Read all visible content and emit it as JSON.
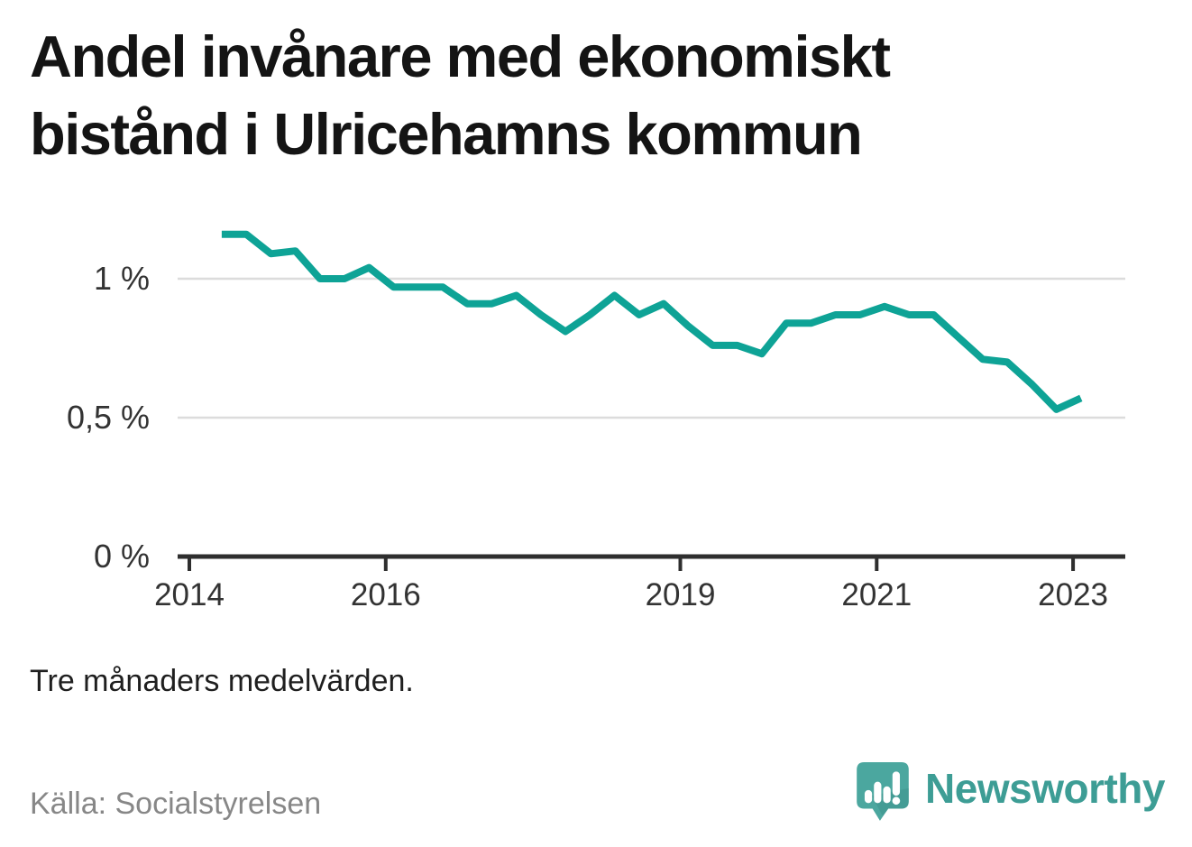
{
  "title": {
    "line1": "Andel invånare med ekonomiskt",
    "line2": "bistånd i Ulricehamns kommun"
  },
  "footnote": "Tre månaders medelvärden.",
  "source": "Källa: Socialstyrelsen",
  "brand": {
    "name": "Newsworthy",
    "icon": "speech-bubble-with-bar-chart-and-exclamation-icon",
    "wordmark_color": "#3d9d95",
    "icon_color": "#4ba79f"
  },
  "colors": {
    "line": "#0ea396",
    "grid": "#dcdcdc",
    "axis": "#2e2e2e",
    "tick_label": "#333333",
    "title": "#141414",
    "footnote": "#1f1f1f",
    "source": "#878787"
  },
  "chart_data": {
    "type": "line",
    "title": "Andel invånare med ekonomiskt bistånd i Ulricehamns kommun",
    "subtitle": "Tre månaders medelvärden.",
    "source": "Källa: Socialstyrelsen",
    "xlabel": "",
    "ylabel": "%",
    "x_unit": "year (quarterly points, three-month averages)",
    "ylim": [
      0,
      1.26
    ],
    "xlim": [
      2013.88,
      2023.53
    ],
    "grid": "horizontal gridlines at 0.5 % and 1 %",
    "legend": "none",
    "yticks": [
      {
        "value": 0,
        "label": "0 %"
      },
      {
        "value": 0.5,
        "label": "0,5 %"
      },
      {
        "value": 1,
        "label": "1 %"
      }
    ],
    "xticks": [
      {
        "value": 2014,
        "label": "2014"
      },
      {
        "value": 2016,
        "label": "2016"
      },
      {
        "value": 2019,
        "label": "2019"
      },
      {
        "value": 2021,
        "label": "2021"
      },
      {
        "value": 2023,
        "label": "2023"
      }
    ],
    "series": [
      {
        "name": "Andel invånare med ekonomiskt bistånd",
        "x": [
          2014.33,
          2014.58,
          2014.83,
          2015.08,
          2015.33,
          2015.58,
          2015.83,
          2016.08,
          2016.33,
          2016.58,
          2016.83,
          2017.08,
          2017.33,
          2017.58,
          2017.83,
          2018.08,
          2018.33,
          2018.58,
          2018.83,
          2019.08,
          2019.33,
          2019.58,
          2019.83,
          2020.08,
          2020.33,
          2020.58,
          2020.83,
          2021.08,
          2021.33,
          2021.58,
          2021.83,
          2022.08,
          2022.33,
          2022.58,
          2022.83,
          2023.08
        ],
        "values": [
          1.16,
          1.16,
          1.09,
          1.1,
          1.0,
          1.0,
          1.04,
          0.97,
          0.97,
          0.97,
          0.91,
          0.91,
          0.94,
          0.87,
          0.81,
          0.87,
          0.94,
          0.87,
          0.91,
          0.83,
          0.76,
          0.76,
          0.73,
          0.84,
          0.84,
          0.87,
          0.87,
          0.9,
          0.87,
          0.87,
          0.79,
          0.71,
          0.7,
          0.62,
          0.53,
          0.57
        ]
      }
    ]
  }
}
